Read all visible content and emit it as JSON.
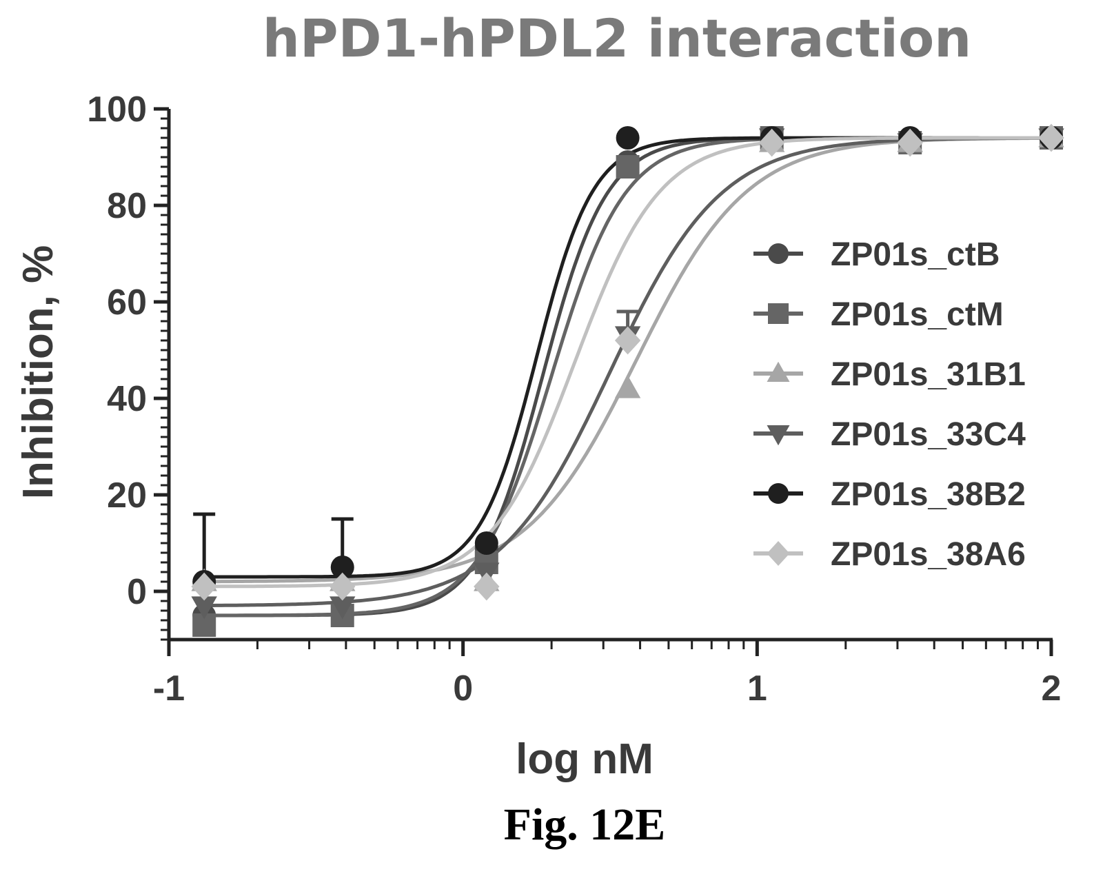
{
  "figure_caption": "Fig. 12E",
  "chart_data": {
    "type": "line",
    "title": "hPD1-hPDL2 interaction",
    "xlabel": "log nM",
    "ylabel": "Inhibition, %",
    "xlim": [
      -1,
      2
    ],
    "ylim": [
      -10,
      100
    ],
    "x_ticks": [
      -1,
      0,
      1,
      2
    ],
    "x_tick_labels": [
      "-1",
      "0",
      "1",
      "2"
    ],
    "y_ticks": [
      0,
      20,
      40,
      60,
      80,
      100
    ],
    "y_tick_labels": [
      "0",
      "20",
      "40",
      "60",
      "80",
      "100"
    ],
    "x_minor_ticks": "log-decade",
    "legend_position": "right",
    "grid": false,
    "series": [
      {
        "name": "ZP01s_ctB",
        "marker": "circle",
        "color": "#4a4a4a",
        "x": [
          -0.88,
          -0.41,
          0.08,
          0.56,
          1.05,
          1.52,
          2.0
        ],
        "y": [
          -5,
          -5,
          9,
          89,
          94,
          93,
          94
        ],
        "fit": {
          "bottom": -5,
          "top": 94,
          "logEC50": 0.27,
          "hill": 4.0
        }
      },
      {
        "name": "ZP01s_ctM",
        "marker": "square",
        "color": "#656565",
        "x": [
          -0.88,
          -0.41,
          0.08,
          0.56,
          1.05,
          1.52,
          2.0
        ],
        "y": [
          -7,
          -5,
          6,
          88,
          94,
          93,
          94
        ],
        "fit": {
          "bottom": -5,
          "top": 94,
          "logEC50": 0.3,
          "hill": 3.5
        }
      },
      {
        "name": "ZP01s_31B1",
        "marker": "triangle-up",
        "color": "#a6a6a6",
        "x": [
          -0.88,
          -0.41,
          0.08,
          0.56,
          1.05,
          1.52,
          2.0
        ],
        "y": [
          2,
          2,
          2,
          42,
          93,
          93,
          94
        ],
        "fit": {
          "bottom": 2,
          "top": 94,
          "logEC50": 0.59,
          "hill": 2.3
        }
      },
      {
        "name": "ZP01s_33C4",
        "marker": "triangle-down",
        "color": "#5e5e5e",
        "x": [
          -0.88,
          -0.41,
          0.08,
          0.56,
          1.05,
          1.52,
          2.0
        ],
        "y": [
          -3,
          -3,
          4,
          53,
          94,
          93,
          94
        ],
        "fit": {
          "bottom": -3,
          "top": 94,
          "logEC50": 0.5,
          "hill": 2.3
        },
        "error": [
          0,
          0,
          0,
          5,
          0,
          0,
          0
        ]
      },
      {
        "name": "ZP01s_38B2",
        "marker": "circle",
        "color": "#1f1f1f",
        "x": [
          -0.88,
          -0.41,
          0.08,
          0.56,
          1.05,
          1.52,
          2.0
        ],
        "y": [
          2,
          5,
          10,
          94,
          94,
          94,
          94
        ],
        "fit": {
          "bottom": 3,
          "top": 94,
          "logEC50": 0.25,
          "hill": 4.5
        },
        "error": [
          14,
          10,
          0,
          0,
          0,
          0,
          0
        ]
      },
      {
        "name": "ZP01s_38A6",
        "marker": "diamond",
        "color": "#c0c0c0",
        "x": [
          -0.88,
          -0.41,
          0.08,
          0.56,
          1.05,
          1.52,
          2.0
        ],
        "y": [
          1,
          1,
          1,
          52,
          93,
          93,
          94
        ],
        "fit": {
          "bottom": 1,
          "top": 94,
          "logEC50": 0.38,
          "hill": 3.0
        }
      }
    ]
  }
}
